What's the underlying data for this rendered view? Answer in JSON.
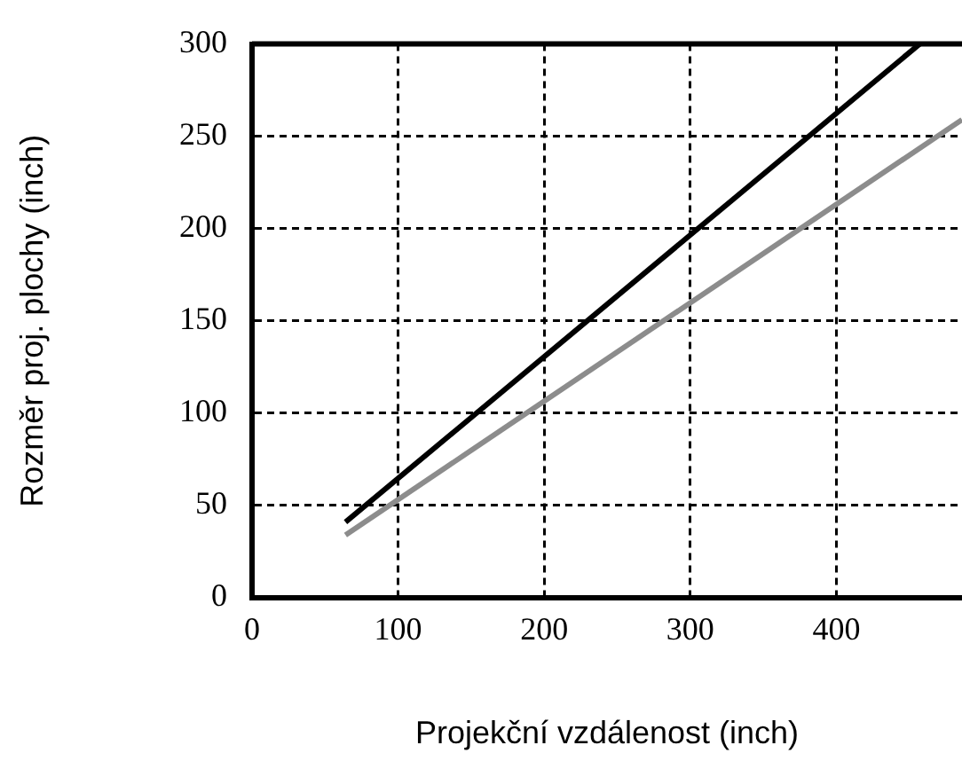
{
  "chart_data": {
    "type": "line",
    "xlabel": "Projekční vzdálenost (inch)",
    "ylabel": "Rozměr proj. plochy (inch)",
    "xlim": [
      0,
      486
    ],
    "xticks": [
      0,
      100,
      200,
      300,
      400
    ],
    "ylim": [
      0,
      300
    ],
    "yticks": [
      0,
      50,
      100,
      150,
      200,
      250,
      300
    ],
    "grid": true,
    "legend": false,
    "marker": "none",
    "line_style": "solid",
    "series": [
      {
        "color": "#000000",
        "x": [
          64,
          457
        ],
        "values": [
          41,
          300
        ]
      },
      {
        "color": "#8c8c8c",
        "x": [
          64,
          486
        ],
        "values": [
          34,
          259
        ]
      }
    ]
  }
}
